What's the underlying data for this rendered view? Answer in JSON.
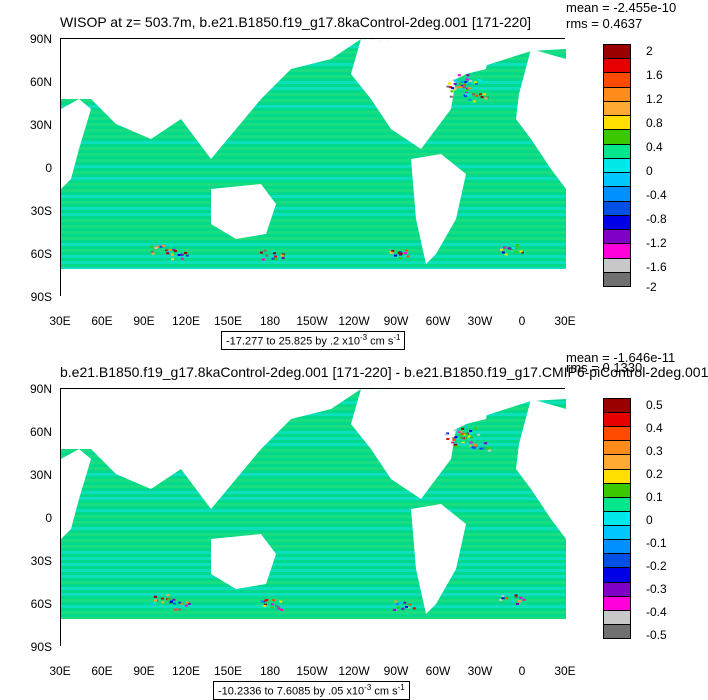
{
  "chart_data": [
    {
      "type": "heatmap",
      "title": "WISOP at z= 503.7m, b.e21.B1850.f19_g17.8kaControl-2deg.001 [171-220]",
      "stats": {
        "mean": "mean = -2.455e-10",
        "rms": "rms = 0.4637"
      },
      "y_ticks": [
        "90N",
        "60N",
        "30N",
        "0",
        "30S",
        "60S",
        "90S"
      ],
      "x_ticks": [
        "30E",
        "60E",
        "90E",
        "120E",
        "150E",
        "180",
        "150W",
        "120W",
        "90W",
        "60W",
        "30W",
        "0",
        "30E"
      ],
      "range_note": {
        "prefix": "-17.277 to 25.825 by .2 x10",
        "exp": "-3",
        "suffix": " cm s",
        "exp2": "-1"
      },
      "colorbar_levels": [
        "2",
        "1.6",
        "1.2",
        "0.8",
        "0.4",
        "0",
        "-0.4",
        "-0.8",
        "-1.2",
        "-1.6",
        "-2"
      ]
    },
    {
      "type": "heatmap",
      "title": "b.e21.B1850.f19_g17.8kaControl-2deg.001 [171-220] - b.e21.B1850.f19_g17.CMIP6-piControl-2deg.001",
      "stats": {
        "mean": "mean = -1.646e-11",
        "rms": "rms = 0.1330"
      },
      "y_ticks": [
        "90N",
        "60N",
        "30N",
        "0",
        "30S",
        "60S",
        "90S"
      ],
      "x_ticks": [
        "30E",
        "60E",
        "90E",
        "120E",
        "150E",
        "180",
        "150W",
        "120W",
        "90W",
        "60W",
        "30W",
        "0",
        "30E"
      ],
      "range_note": {
        "prefix": "-10.2336 to 7.6085 by .05 x10",
        "exp": "-3",
        "suffix": " cm s",
        "exp2": "-1"
      },
      "colorbar_levels": [
        "0.5",
        "0.4",
        "0.3",
        "0.2",
        "0.1",
        "0",
        "-0.1",
        "-0.2",
        "-0.3",
        "-0.4",
        "-0.5"
      ]
    }
  ],
  "colors": {
    "ocean_base": "#00d88a",
    "ocean_alt": "#2fe07a",
    "cyan": "#15e6e6",
    "palette": [
      "#9b0000",
      "#e60000",
      "#ff4a00",
      "#ff8c1a",
      "#ffaa33",
      "#ffe000",
      "#3cc800",
      "#00e68c",
      "#00e8e8",
      "#00c8ff",
      "#0090ff",
      "#0050e6",
      "#0000e6",
      "#8000c8",
      "#ff00dc",
      "#c8c8c8",
      "#707070"
    ]
  }
}
